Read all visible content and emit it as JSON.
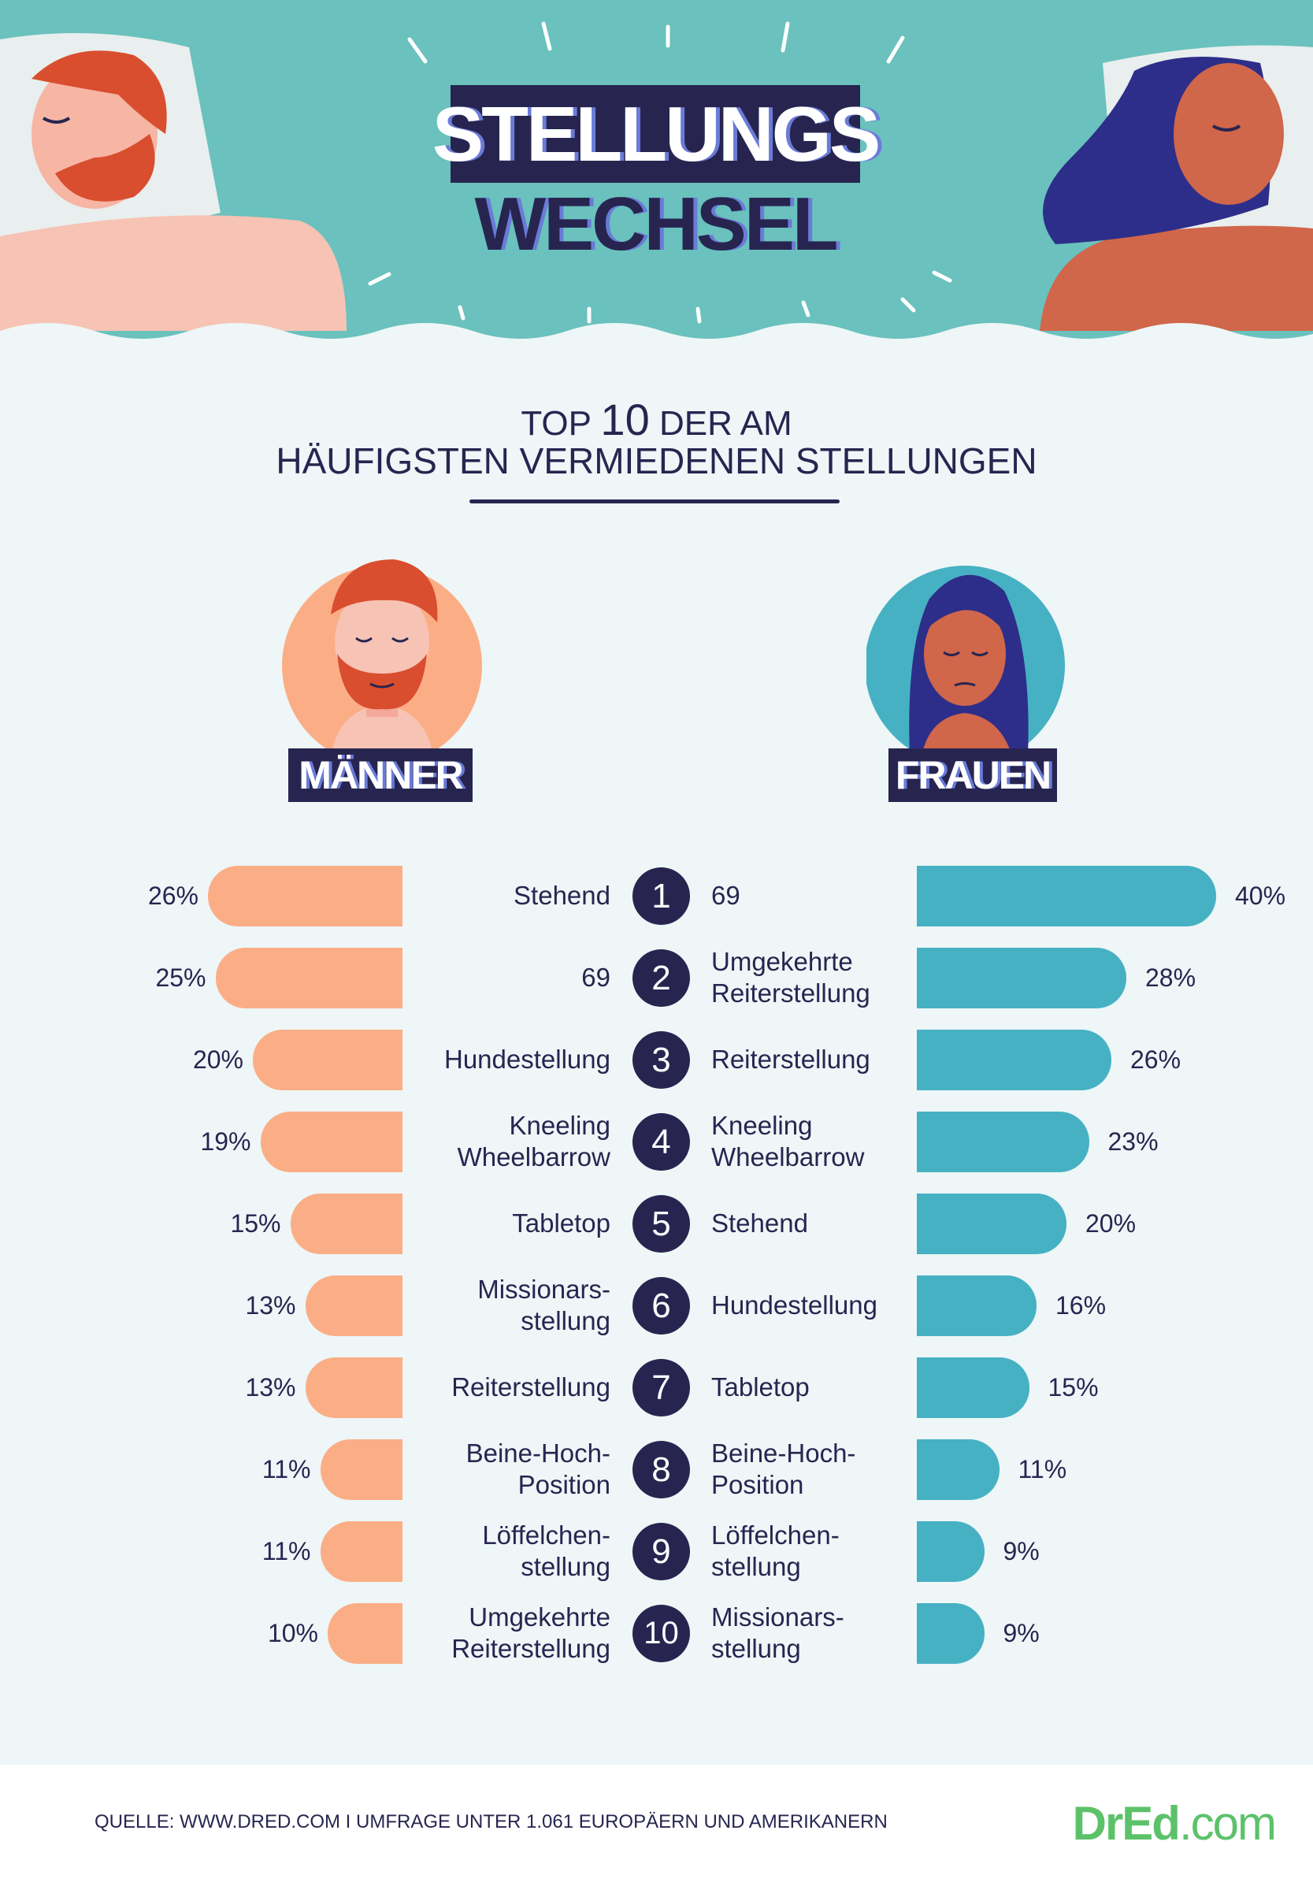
{
  "header": {
    "title_line1": "STELLUNGS",
    "title_line2": "WECHSEL"
  },
  "subtitle": {
    "line1_pre": "TOP",
    "line1_num": "10",
    "line1_post": "DER AM",
    "line2": "HÄUFIGSTEN VERMIEDENEN STELLUNGEN"
  },
  "labels": {
    "men": "MÄNNER",
    "women": "FRAUEN"
  },
  "chart_data": {
    "type": "bar",
    "ranks": [
      "1",
      "2",
      "3",
      "4",
      "5",
      "6",
      "7",
      "8",
      "9",
      "10"
    ],
    "series": [
      {
        "name": "MÄNNER",
        "categories": [
          "Stehend",
          "69",
          "Hundestellung",
          "Kneeling\nWheelbarrow",
          "Tabletop",
          "Missionars-\nstellung",
          "Reiterstellung",
          "Beine-Hoch-\nPosition",
          "Löffelchen-\nstellung",
          "Umgekehrte\nReiterstellung"
        ],
        "values": [
          26,
          25,
          20,
          19,
          15,
          13,
          13,
          11,
          11,
          10
        ],
        "value_labels": [
          "26%",
          "25%",
          "20%",
          "19%",
          "15%",
          "13%",
          "13%",
          "11%",
          "11%",
          "10%"
        ],
        "color": "#fbae86"
      },
      {
        "name": "FRAUEN",
        "categories": [
          "69",
          "Umgekehrte\nReiterstellung",
          "Reiterstellung",
          "Kneeling\nWheelbarrow",
          "Stehend",
          "Hundestellung",
          "Tabletop",
          "Beine-Hoch-\nPosition",
          "Löffelchen-\nstellung",
          "Missionars-\nstellung"
        ],
        "values": [
          40,
          28,
          26,
          23,
          20,
          16,
          15,
          11,
          9,
          9
        ],
        "value_labels": [
          "40%",
          "28%",
          "26%",
          "23%",
          "20%",
          "16%",
          "15%",
          "11%",
          "9%",
          "9%"
        ],
        "color": "#46b1c3"
      }
    ]
  },
  "footer": {
    "source": "QUELLE: WWW.DRED.COM I UMFRAGE UNTER 1.061 EUROPÄERN UND AMERIKANERN",
    "logo_main": "DrEd",
    "logo_ext": ".com"
  },
  "colors": {
    "navy": "#272550",
    "men_bar": "#fbae86",
    "women_bar": "#46b1c3",
    "teal_bg": "#6ac1bd",
    "logo_green": "#5cc26a"
  }
}
